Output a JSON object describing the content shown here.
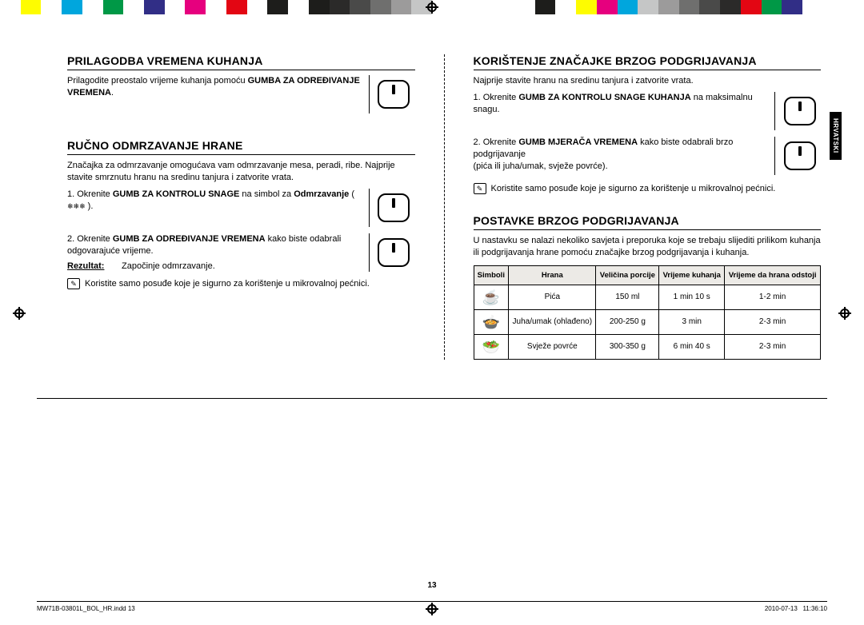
{
  "colorbar": [
    "#ffffff",
    "#fefc00",
    "#ffffff",
    "#00a6dd",
    "#ffffff",
    "#009846",
    "#ffffff",
    "#312e86",
    "#ffffff",
    "#e6007e",
    "#ffffff",
    "#e30613",
    "#ffffff",
    "#1d1d1b",
    "#ffffff",
    "#1d1d1b",
    "#2b2a29",
    "#4a4a49",
    "#6f6f6e",
    "#9c9b9b",
    "#c5c6c6",
    "#ffffff",
    "#ffffff",
    "#ffffff",
    "#ffffff",
    "#ffffff",
    "#1d1d1b",
    "#ffffff",
    "#fefc00",
    "#e6007e",
    "#00a6dd",
    "#c5c6c6",
    "#9c9b9b",
    "#6f6f6e",
    "#4a4a49",
    "#2b2a29",
    "#e30613",
    "#009846",
    "#312e86",
    "#ffffff",
    "#ffffff",
    "#ffffff"
  ],
  "sidetab": "HRVATSKI",
  "left": {
    "sec1": {
      "title": "Prilagodba vremena kuhanja",
      "para_pre": "Prilagodite preostalo vrijeme kuhanja pomoću ",
      "para_bold": "GUMBA ZA ODREĐIVANJE VREMENA",
      "para_post": "."
    },
    "sec2": {
      "title": "Ručno odmrzavanje hrane",
      "intro": "Značajka za odmrzavanje omogućava vam odmrzavanje mesa, peradi, ribe. Najprije stavite smrznutu hranu na sredinu tanjura i zatvorite vrata.",
      "s1_pre": "1.  Okrenite ",
      "s1_bold": "GUMB ZA KONTROLU SNAGE",
      "s1_mid": " na simbol za ",
      "s1_bold2": "Odmrzavanje",
      "s1_post": " ( ",
      "s1_icon": "❄❄❄",
      "s1_post2": " ).",
      "s2_pre": "2.  Okrenite ",
      "s2_bold": "GUMB ZA ODREĐIVANJE VREMENA",
      "s2_post": " kako biste odabrali odgovarajuće vrijeme.",
      "result_lbl": "Rezultat:",
      "result_txt": "Započinje odmrzavanje.",
      "note": "Koristite samo posuđe koje je sigurno za korištenje u mikrovalnoj pećnici."
    }
  },
  "right": {
    "sec1": {
      "title": "Korištenje značajke brzog podgrijavanja",
      "intro": "Najprije stavite hranu na sredinu tanjura i zatvorite vrata.",
      "s1_pre": "1.  Okrenite ",
      "s1_bold": "GUMB ZA KONTROLU SNAGE KUHANJA",
      "s1_post": " na maksimalnu snagu.",
      "s2_pre": "2.  Okrenite ",
      "s2_bold": "GUMB MJERAČA VREMENA",
      "s2_post": " kako biste odabrali brzo podgrijavanje",
      "s2_line2": "(pića ili juha/umak, svježe povrće).",
      "note": "Koristite samo posuđe koje je sigurno za korištenje u mikrovalnoj pećnici."
    },
    "sec2": {
      "title": "Postavke brzog podgrijavanja",
      "intro": "U nastavku se nalazi nekoliko savjeta i preporuka koje se trebaju slijediti prilikom kuhanja ili podgrijavanja hrane pomoću značajke brzog podgrijavanja i kuhanja.",
      "table": {
        "headers": [
          "Simboli",
          "Hrana",
          "Veličina porcije",
          "Vrijeme kuhanja",
          "Vrijeme da hrana odstoji"
        ],
        "rows": [
          {
            "sym": "☕",
            "food": "Pića",
            "portion": "150 ml",
            "time": "1 min 10 s",
            "stand": "1-2 min"
          },
          {
            "sym": "🍲",
            "food": "Juha/umak (ohlađeno)",
            "portion": "200-250 g",
            "time": "3 min",
            "stand": "2-3 min"
          },
          {
            "sym": "🥗",
            "food": "Svježe povrće",
            "portion": "300-350 g",
            "time": "6 min 40 s",
            "stand": "2-3 min"
          }
        ]
      }
    }
  },
  "page_number": "13",
  "footer": {
    "file": "MW71B-03801L_BOL_HR.indd   13",
    "date": "2010-07-13",
    "time": "11:36:10"
  }
}
